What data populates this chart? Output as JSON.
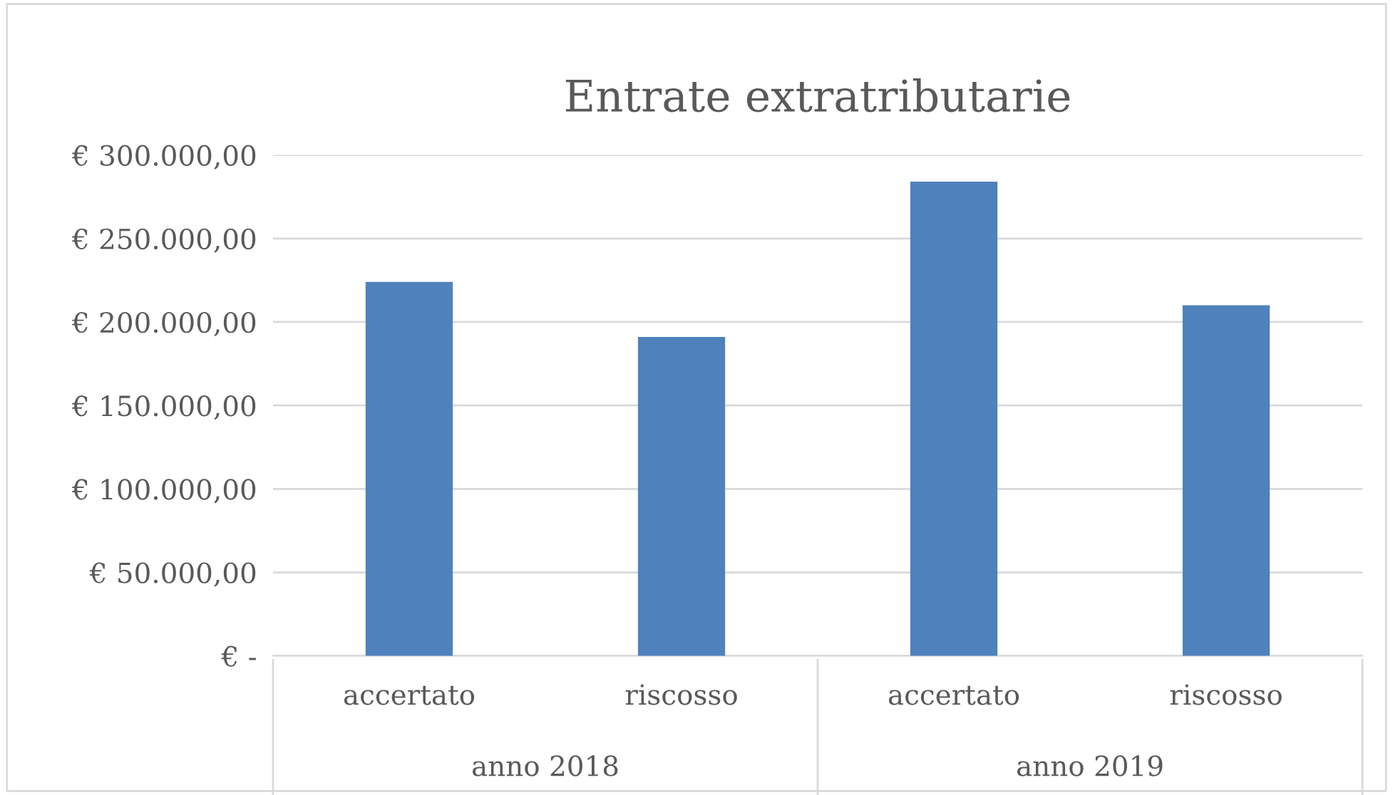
{
  "chart_data": {
    "type": "bar",
    "title": "Entrate extratributarie",
    "categories": [
      "accertato",
      "riscosso",
      "accertato",
      "riscosso"
    ],
    "values": [
      224000,
      191000,
      284000,
      210000
    ],
    "color": "#4f81bd",
    "ylim": [
      0,
      300000
    ],
    "yticks": [
      {
        "value": 0,
        "label": "€ -"
      },
      {
        "value": 50000,
        "label": "€ 50.000,00"
      },
      {
        "value": 100000,
        "label": "€ 100.000,00"
      },
      {
        "value": 150000,
        "label": "€ 150.000,00"
      },
      {
        "value": 200000,
        "label": "€ 200.000,00"
      },
      {
        "value": 250000,
        "label": "€ 250.000,00"
      },
      {
        "value": 300000,
        "label": "€ 300.000,00"
      }
    ],
    "grid": "y",
    "legend": false,
    "annotations": [
      "anno 2018",
      "anno 2019"
    ]
  }
}
